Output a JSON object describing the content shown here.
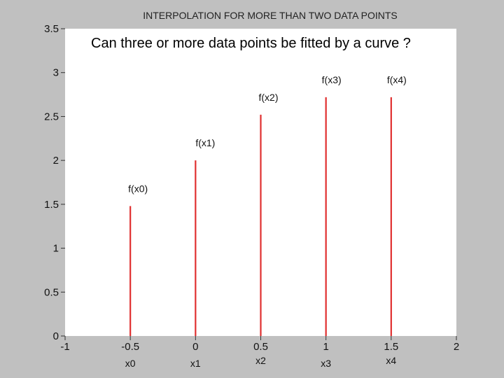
{
  "slide": {
    "question": "Can three or more data points be fitted by a curve ?"
  },
  "chart_data": {
    "type": "bar",
    "title": "INTERPOLATION FOR MORE THAN TWO DATA POINTS",
    "xlabel": "",
    "ylabel": "",
    "xlim": [
      -1,
      2
    ],
    "ylim": [
      0,
      3.5
    ],
    "x_ticks": [
      "-1",
      "-0.5",
      "0",
      "0.5",
      "1",
      "1.5",
      "2"
    ],
    "y_ticks": [
      "0",
      "0.5",
      "1",
      "1.5",
      "2",
      "2.5",
      "3",
      "3.5"
    ],
    "grid": false,
    "series_color": "#e03030",
    "points": [
      {
        "x": -0.5,
        "y": 1.48,
        "label": "f(x0)",
        "sublabel": "x0"
      },
      {
        "x": 0,
        "y": 2.0,
        "label": "f(x1)",
        "sublabel": "x1"
      },
      {
        "x": 0.5,
        "y": 2.52,
        "label": "f(x2)",
        "sublabel": "x2"
      },
      {
        "x": 1.0,
        "y": 2.72,
        "label": "f(x3)",
        "sublabel": "x3"
      },
      {
        "x": 1.5,
        "y": 2.72,
        "label": "f(x4)",
        "sublabel": "x4"
      }
    ]
  }
}
